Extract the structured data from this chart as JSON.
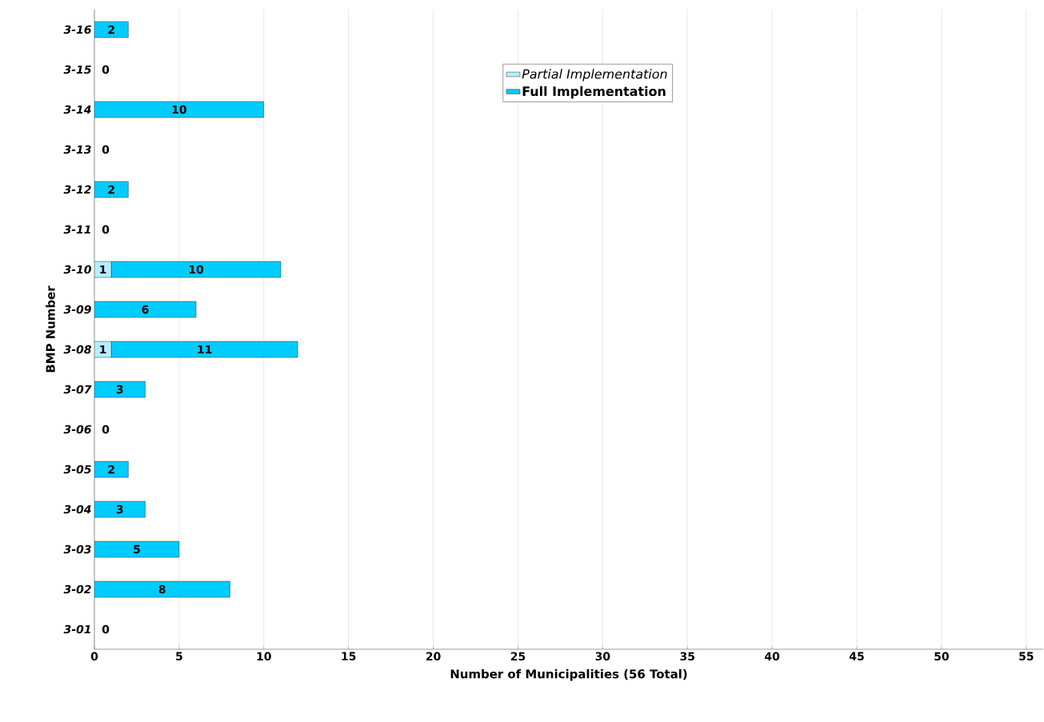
{
  "chart_data": {
    "type": "bar",
    "orientation": "horizontal",
    "stacked": true,
    "categories": [
      "3-16",
      "3-15",
      "3-14",
      "3-13",
      "3-12",
      "3-11",
      "3-10",
      "3-09",
      "3-08",
      "3-07",
      "3-06",
      "3-05",
      "3-04",
      "3-03",
      "3-02",
      "3-01"
    ],
    "series": [
      {
        "name": "Partial Implementation",
        "color": "#b3efff",
        "values": [
          null,
          null,
          null,
          null,
          null,
          null,
          1,
          null,
          1,
          null,
          null,
          null,
          null,
          null,
          null,
          null
        ],
        "value_labels": [
          null,
          null,
          null,
          null,
          null,
          null,
          "1",
          null,
          "1",
          null,
          null,
          null,
          null,
          null,
          null,
          null
        ]
      },
      {
        "name": "Full Implementation",
        "color": "#00ccff",
        "values": [
          2,
          0,
          10,
          0,
          2,
          0,
          10,
          6,
          11,
          3,
          0,
          2,
          3,
          5,
          8,
          0
        ],
        "value_labels": [
          "2",
          "0",
          "10",
          "0",
          "2",
          "0",
          "10",
          "6",
          "11",
          "3",
          "0",
          "2",
          "3",
          "5",
          "8",
          "0"
        ]
      }
    ],
    "xlabel": "Number of Municipalities (56 Total)",
    "ylabel": "BMP Number",
    "xlim": [
      0,
      56
    ],
    "xticks": [
      0,
      5,
      10,
      15,
      20,
      25,
      30,
      35,
      40,
      45,
      50,
      55
    ],
    "grid": "x",
    "legend": "top"
  }
}
